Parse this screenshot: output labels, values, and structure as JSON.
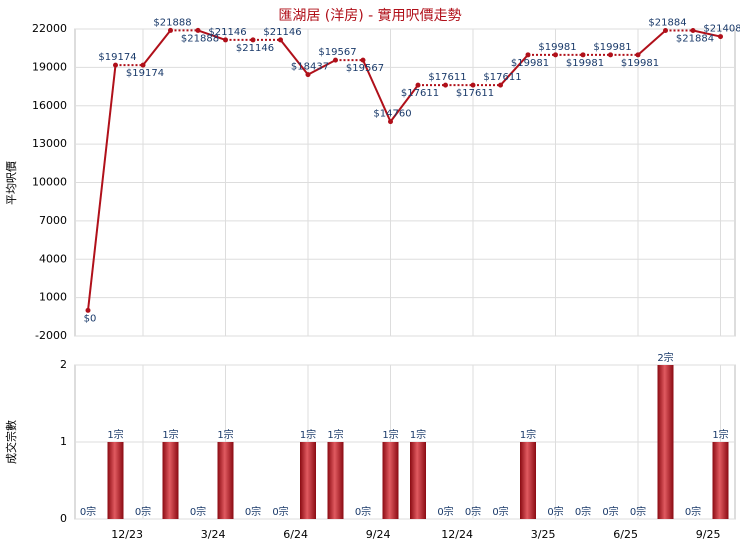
{
  "chart_data": [
    {
      "type": "line",
      "title": "匯湖居 (洋房) - 實用呎價走勢",
      "y_label": "平均呎價",
      "color": "#b0101a",
      "values": [
        0,
        19174,
        19174,
        21888,
        21888,
        21146,
        21146,
        21146,
        18437,
        19567,
        19567,
        14760,
        17611,
        17611,
        17611,
        17611,
        19981,
        19981,
        19981,
        19981,
        19981,
        21884,
        21884,
        21408
      ],
      "value_labels": [
        "$0",
        "$19174",
        "$19174",
        "$21888",
        "$21888",
        "$21146",
        "$21146",
        "$21146",
        "$18437",
        "$19567",
        "$19567",
        "$14760",
        "$17611",
        "$17611",
        "$17611",
        "$17611",
        "$19981",
        "$19981",
        "$19981",
        "$19981",
        "$19981",
        "$21884",
        "$21884",
        "$21408"
      ],
      "ylim": [
        -2000,
        22000
      ],
      "yticks": [
        -2000,
        1000,
        4000,
        7000,
        10000,
        13000,
        16000,
        19000,
        22000
      ],
      "grid": true
    },
    {
      "type": "bar",
      "y_label": "成交宗數",
      "color": "#b0101a",
      "categories": [
        null,
        null,
        "12/23",
        null,
        null,
        "3/24",
        null,
        null,
        "6/24",
        null,
        null,
        "9/24",
        null,
        null,
        "12/24",
        null,
        null,
        "3/25",
        null,
        null,
        "6/25",
        null,
        null,
        "9/25"
      ],
      "values": [
        0,
        1,
        0,
        1,
        0,
        1,
        0,
        0,
        1,
        1,
        0,
        1,
        1,
        0,
        0,
        0,
        1,
        0,
        0,
        0,
        0,
        2,
        0,
        1
      ],
      "value_labels": [
        "0宗",
        "1宗",
        "0宗",
        "1宗",
        "0宗",
        "1宗",
        "0宗",
        "0宗",
        "1宗",
        "1宗",
        "0宗",
        "1宗",
        "1宗",
        "0宗",
        "0宗",
        "0宗",
        "1宗",
        "0宗",
        "0宗",
        "0宗",
        "0宗",
        "2宗",
        "0宗",
        "1宗"
      ],
      "ylim": [
        0,
        2
      ],
      "yticks": [
        0,
        1,
        2
      ],
      "grid": true
    }
  ]
}
